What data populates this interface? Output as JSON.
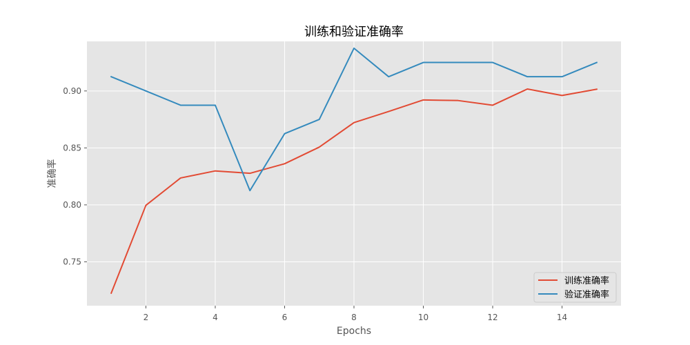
{
  "chart_data": {
    "type": "line",
    "title": "训练和验证准确率",
    "xlabel": "Epochs",
    "ylabel": "准确率",
    "xlim": [
      0.3,
      15.7
    ],
    "ylim": [
      0.7115,
      0.9435
    ],
    "x_ticks": [
      2,
      4,
      6,
      8,
      10,
      12,
      14
    ],
    "y_ticks": [
      0.75,
      0.8,
      0.85,
      0.9
    ],
    "y_tick_labels": [
      "0.75",
      "0.80",
      "0.85",
      "0.90"
    ],
    "grid": true,
    "legend_position": "bottom-right",
    "background": "#e5e5e5",
    "x": [
      1,
      2,
      3,
      4,
      5,
      6,
      7,
      8,
      9,
      10,
      11,
      12,
      13,
      14,
      15
    ],
    "series": [
      {
        "name": "训练准确率",
        "color": "#e24a33",
        "values": [
          0.7225,
          0.7996,
          0.8236,
          0.8298,
          0.8277,
          0.8361,
          0.8507,
          0.8722,
          0.882,
          0.8921,
          0.8916,
          0.8875,
          0.9017,
          0.896,
          0.9015
        ]
      },
      {
        "name": "验证准确率",
        "color": "#348abd",
        "values": [
          0.9125,
          0.9,
          0.8875,
          0.8875,
          0.8125,
          0.8625,
          0.875,
          0.9375,
          0.9125,
          0.925,
          0.925,
          0.925,
          0.9125,
          0.9125,
          0.925
        ]
      }
    ]
  }
}
